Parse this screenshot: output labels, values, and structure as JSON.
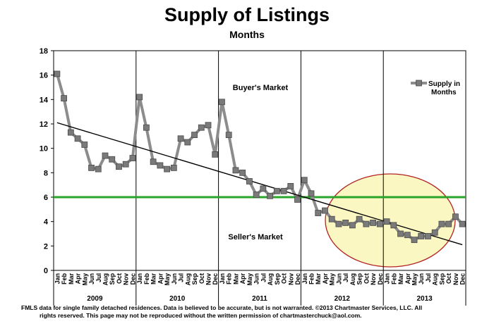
{
  "title": "Supply of Listings",
  "subtitle": "Months",
  "footnote": {
    "line1": "FMLS data for single family detached residences.  Data is believed to be accurate, but is not warranted.   ©2013  Chartmaster Services, LLC.  All",
    "line2": "rights reserved. This page may not be reproduced without the written permission of chartmasterchuck@aol.com."
  },
  "colors": {
    "series_line": "#8c8c8c",
    "marker": "#7a7a7a",
    "trend": "#000000",
    "threshold": "#2aa52a",
    "ellipse_fill": "#fbf7c2",
    "ellipse_stroke": "#b22222"
  },
  "chart_data": {
    "type": "line",
    "title": "Supply of Listings",
    "subtitle": "Months",
    "ylim": [
      0,
      18
    ],
    "yticks": [
      0,
      2,
      4,
      6,
      8,
      10,
      12,
      14,
      16,
      18
    ],
    "grid": false,
    "legend_position": "top-right",
    "months": [
      "Jan",
      "Feb",
      "Mar",
      "Apr",
      "May",
      "Jun",
      "Jul",
      "Aug",
      "Sep",
      "Oct",
      "Nov",
      "Dec"
    ],
    "years": [
      "2009",
      "2010",
      "2011",
      "2012",
      "2013"
    ],
    "series": [
      {
        "name": "Supply in Months",
        "values": [
          16.1,
          14.1,
          11.3,
          10.8,
          10.3,
          8.4,
          8.3,
          9.4,
          9.1,
          8.5,
          8.7,
          9.2,
          14.2,
          11.7,
          8.9,
          8.6,
          8.3,
          8.4,
          10.8,
          10.5,
          11.1,
          11.7,
          11.9,
          9.5,
          13.8,
          11.1,
          8.2,
          8.0,
          7.3,
          6.2,
          6.7,
          6.1,
          6.5,
          6.5,
          6.9,
          5.8,
          7.4,
          6.3,
          4.7,
          4.9,
          4.2,
          3.8,
          3.9,
          3.7,
          4.2,
          3.8,
          3.9,
          3.8,
          4.0,
          3.7,
          3.0,
          2.9,
          2.5,
          2.8,
          2.8,
          3.1,
          3.8,
          3.8,
          4.4,
          3.8
        ]
      }
    ],
    "trendline": {
      "start": 12.1,
      "end": 2.1
    },
    "threshold": 6,
    "annotations": {
      "upper": "Buyer's Market",
      "lower": "Seller's Market"
    },
    "legend_label": {
      "line1": "Supply in",
      "line2": "Months"
    }
  }
}
